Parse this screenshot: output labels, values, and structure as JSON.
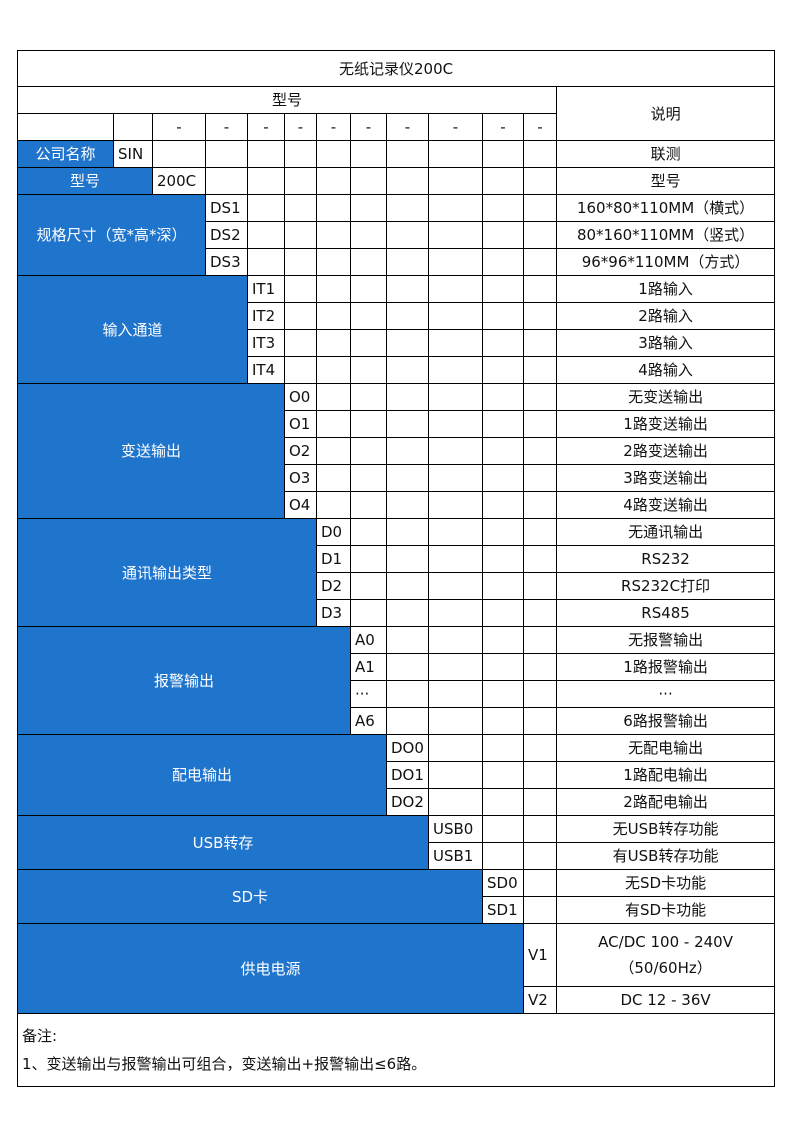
{
  "title": "无纸记录仪200C",
  "header": {
    "model_label": "型号",
    "desc_label": "说明",
    "dash": "-"
  },
  "groups": [
    {
      "label": "公司名称",
      "code_col": 1,
      "rows": [
        {
          "code": "SIN",
          "desc": "联测"
        }
      ]
    },
    {
      "label": "型号",
      "code_col": 2,
      "rows": [
        {
          "code": "200C",
          "desc": "型号"
        }
      ]
    },
    {
      "label": "规格尺寸（宽*高*深）",
      "code_col": 3,
      "rows": [
        {
          "code": "DS1",
          "desc": "160*80*110MM（横式）"
        },
        {
          "code": "DS2",
          "desc": "80*160*110MM（竖式）"
        },
        {
          "code": "DS3",
          "desc": "96*96*110MM（方式）"
        }
      ]
    },
    {
      "label": "输入通道",
      "code_col": 4,
      "rows": [
        {
          "code": "IT1",
          "desc": "1路输入"
        },
        {
          "code": "IT2",
          "desc": "2路输入"
        },
        {
          "code": "IT3",
          "desc": "3路输入"
        },
        {
          "code": "IT4",
          "desc": "4路输入"
        }
      ]
    },
    {
      "label": "变送输出",
      "code_col": 5,
      "rows": [
        {
          "code": "O0",
          "desc": "无变送输出"
        },
        {
          "code": "O1",
          "desc": "1路变送输出"
        },
        {
          "code": "O2",
          "desc": "2路变送输出"
        },
        {
          "code": "O3",
          "desc": "3路变送输出"
        },
        {
          "code": "O4",
          "desc": "4路变送输出"
        }
      ]
    },
    {
      "label": "通讯输出类型",
      "code_col": 6,
      "rows": [
        {
          "code": "D0",
          "desc": "无通讯输出"
        },
        {
          "code": "D1",
          "desc": "RS232"
        },
        {
          "code": "D2",
          "desc": "RS232C打印"
        },
        {
          "code": "D3",
          "desc": "RS485"
        }
      ]
    },
    {
      "label": "报警输出",
      "code_col": 7,
      "rows": [
        {
          "code": "A0",
          "desc": "无报警输出"
        },
        {
          "code": "A1",
          "desc": "1路报警输出"
        },
        {
          "code": "···",
          "desc": "···"
        },
        {
          "code": "A6",
          "desc": "6路报警输出"
        }
      ]
    },
    {
      "label": "配电输出",
      "code_col": 8,
      "rows": [
        {
          "code": "DO0",
          "desc": "无配电输出"
        },
        {
          "code": "DO1",
          "desc": "1路配电输出"
        },
        {
          "code": "DO2",
          "desc": "2路配电输出"
        }
      ]
    },
    {
      "label": "USB转存",
      "code_col": 9,
      "rows": [
        {
          "code": "USB0",
          "desc": "无USB转存功能"
        },
        {
          "code": "USB1",
          "desc": "有USB转存功能"
        }
      ]
    },
    {
      "label": "SD卡",
      "code_col": 10,
      "rows": [
        {
          "code": "SD0",
          "desc": "无SD卡功能"
        },
        {
          "code": "SD1",
          "desc": "有SD卡功能"
        }
      ]
    },
    {
      "label": "供电电源",
      "code_col": 11,
      "rows": [
        {
          "code": "V1",
          "desc": "AC/DC 100 - 240V\n（50/60Hz）"
        },
        {
          "code": "V2",
          "desc": "DC 12 - 36V"
        }
      ]
    }
  ],
  "notes": {
    "title": "备注:",
    "items": [
      "1、变送输出与报警输出可组合，变送输出+报警输出≤6路。"
    ]
  },
  "colors": {
    "accent": "#1f74cc"
  }
}
